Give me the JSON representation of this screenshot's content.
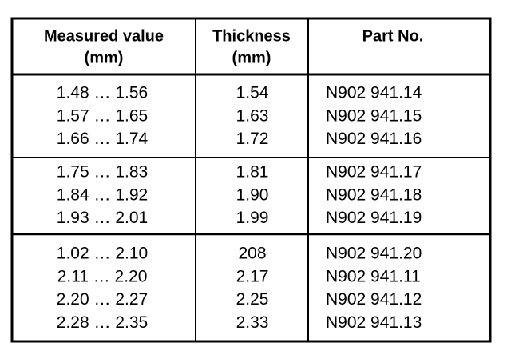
{
  "table": {
    "header": [
      [
        "Measured value",
        "(mm)"
      ],
      [
        "Thickness",
        "(mm)"
      ],
      [
        "Part No."
      ]
    ],
    "groups": [
      [
        [
          "1.48 … 1.56",
          "1.54",
          "N902 941.14"
        ],
        [
          "1.57 … 1.65",
          "1.63",
          "N902 941.15"
        ],
        [
          "1.66 … 1.74",
          "1.72",
          "N902 941.16"
        ]
      ],
      [
        [
          "1.75 … 1.83",
          "1.81",
          "N902 941.17"
        ],
        [
          "1.84 … 1.92",
          "1.90",
          "N902 941.18"
        ],
        [
          "1.93 … 2.01",
          "1.99",
          "N902 941.19"
        ]
      ],
      [
        [
          "1.02 … 2.10",
          "208",
          "N902 941.20"
        ],
        [
          "2.11 … 2.20",
          "2.17",
          "N902 941.11"
        ],
        [
          "2.20 … 2.27",
          "2.25",
          "N902 941.12"
        ],
        [
          "2.28 … 2.35",
          "2.33",
          "N902 941.13"
        ]
      ]
    ]
  }
}
